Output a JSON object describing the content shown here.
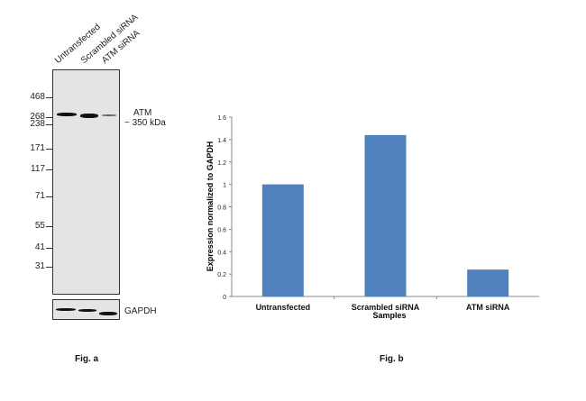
{
  "fig_a": {
    "label": "Fig. a",
    "lanes": [
      "Untransfected",
      "Scrambled siRNA",
      "ATM siRNA"
    ],
    "markers": [
      "468",
      "268",
      "238",
      "171",
      "117",
      "71",
      "55",
      "41",
      "31"
    ],
    "band_label": "ATM",
    "band_size": "~ 350 kDa",
    "loading_control": "GAPDH"
  },
  "fig_b": {
    "label": "Fig. b"
  },
  "chart_data": {
    "type": "bar",
    "categories": [
      "Untransfected",
      "Scrambled siRNA",
      "ATM siRNA"
    ],
    "values": [
      1.0,
      1.44,
      0.24
    ],
    "title": "",
    "xlabel": "Samples",
    "ylabel": "Expression normalized to GAPDH",
    "ylim": [
      0,
      1.6
    ],
    "yticks": [
      "0",
      "0.2",
      "0.4",
      "0.6",
      "0.8",
      "1",
      "1.2",
      "1.4",
      "1.6"
    ],
    "grid": false,
    "bar_color": "#4f81bd"
  }
}
